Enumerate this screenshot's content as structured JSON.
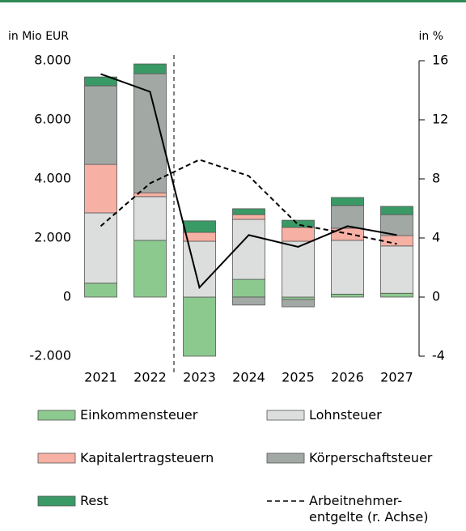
{
  "chart_data": {
    "type": "bar",
    "y_label": "in Mio EUR",
    "y2_label": "in %",
    "categories": [
      "2021",
      "2022",
      "2023",
      "2024",
      "2025",
      "2026",
      "2027"
    ],
    "series": [
      {
        "name": "Einkommensteuer",
        "color": "#8cc98f",
        "values": [
          470,
          1920,
          -2000,
          600,
          -80,
          100,
          130
        ]
      },
      {
        "name": "Lohnsteuer",
        "color": "#dcdedd",
        "values": [
          2380,
          1480,
          1890,
          2030,
          1890,
          1820,
          1600
        ]
      },
      {
        "name": "Kapitalertragsteuern",
        "color": "#f7b0a4",
        "values": [
          1640,
          130,
          300,
          160,
          470,
          410,
          350
        ]
      },
      {
        "name": "Körperschaftsteuer",
        "color": "#a2a8a4",
        "values": [
          2660,
          4030,
          0,
          -270,
          -250,
          770,
          710
        ]
      },
      {
        "name": "Rest",
        "color": "#3a9a66",
        "values": [
          300,
          330,
          390,
          200,
          240,
          270,
          280
        ]
      },
      {
        "kind": "line",
        "axis": "y2",
        "color": "#000000",
        "values": [
          15.1,
          13.9,
          0.65,
          4.2,
          3.4,
          4.8,
          4.2
        ]
      },
      {
        "name": "Arbeitnehmer-\nentgelte (r. Achse)",
        "kind": "line",
        "dashed": true,
        "axis": "y2",
        "color": "#000000",
        "values": [
          4.8,
          7.7,
          9.3,
          8.2,
          4.9,
          4.3,
          3.6
        ]
      }
    ],
    "ylim": [
      -2000,
      8000
    ],
    "yticks": [
      {
        "value": -2000,
        "label": "-2.000"
      },
      0,
      {
        "value": 2000,
        "label": "2.000"
      },
      {
        "value": 4000,
        "label": "4.000"
      },
      {
        "value": 6000,
        "label": "6.000"
      },
      {
        "value": 8000,
        "label": "8.000"
      }
    ],
    "y2lim": [
      -4,
      16
    ],
    "y2ticks": [
      -4,
      0,
      4,
      8,
      12,
      16
    ]
  }
}
